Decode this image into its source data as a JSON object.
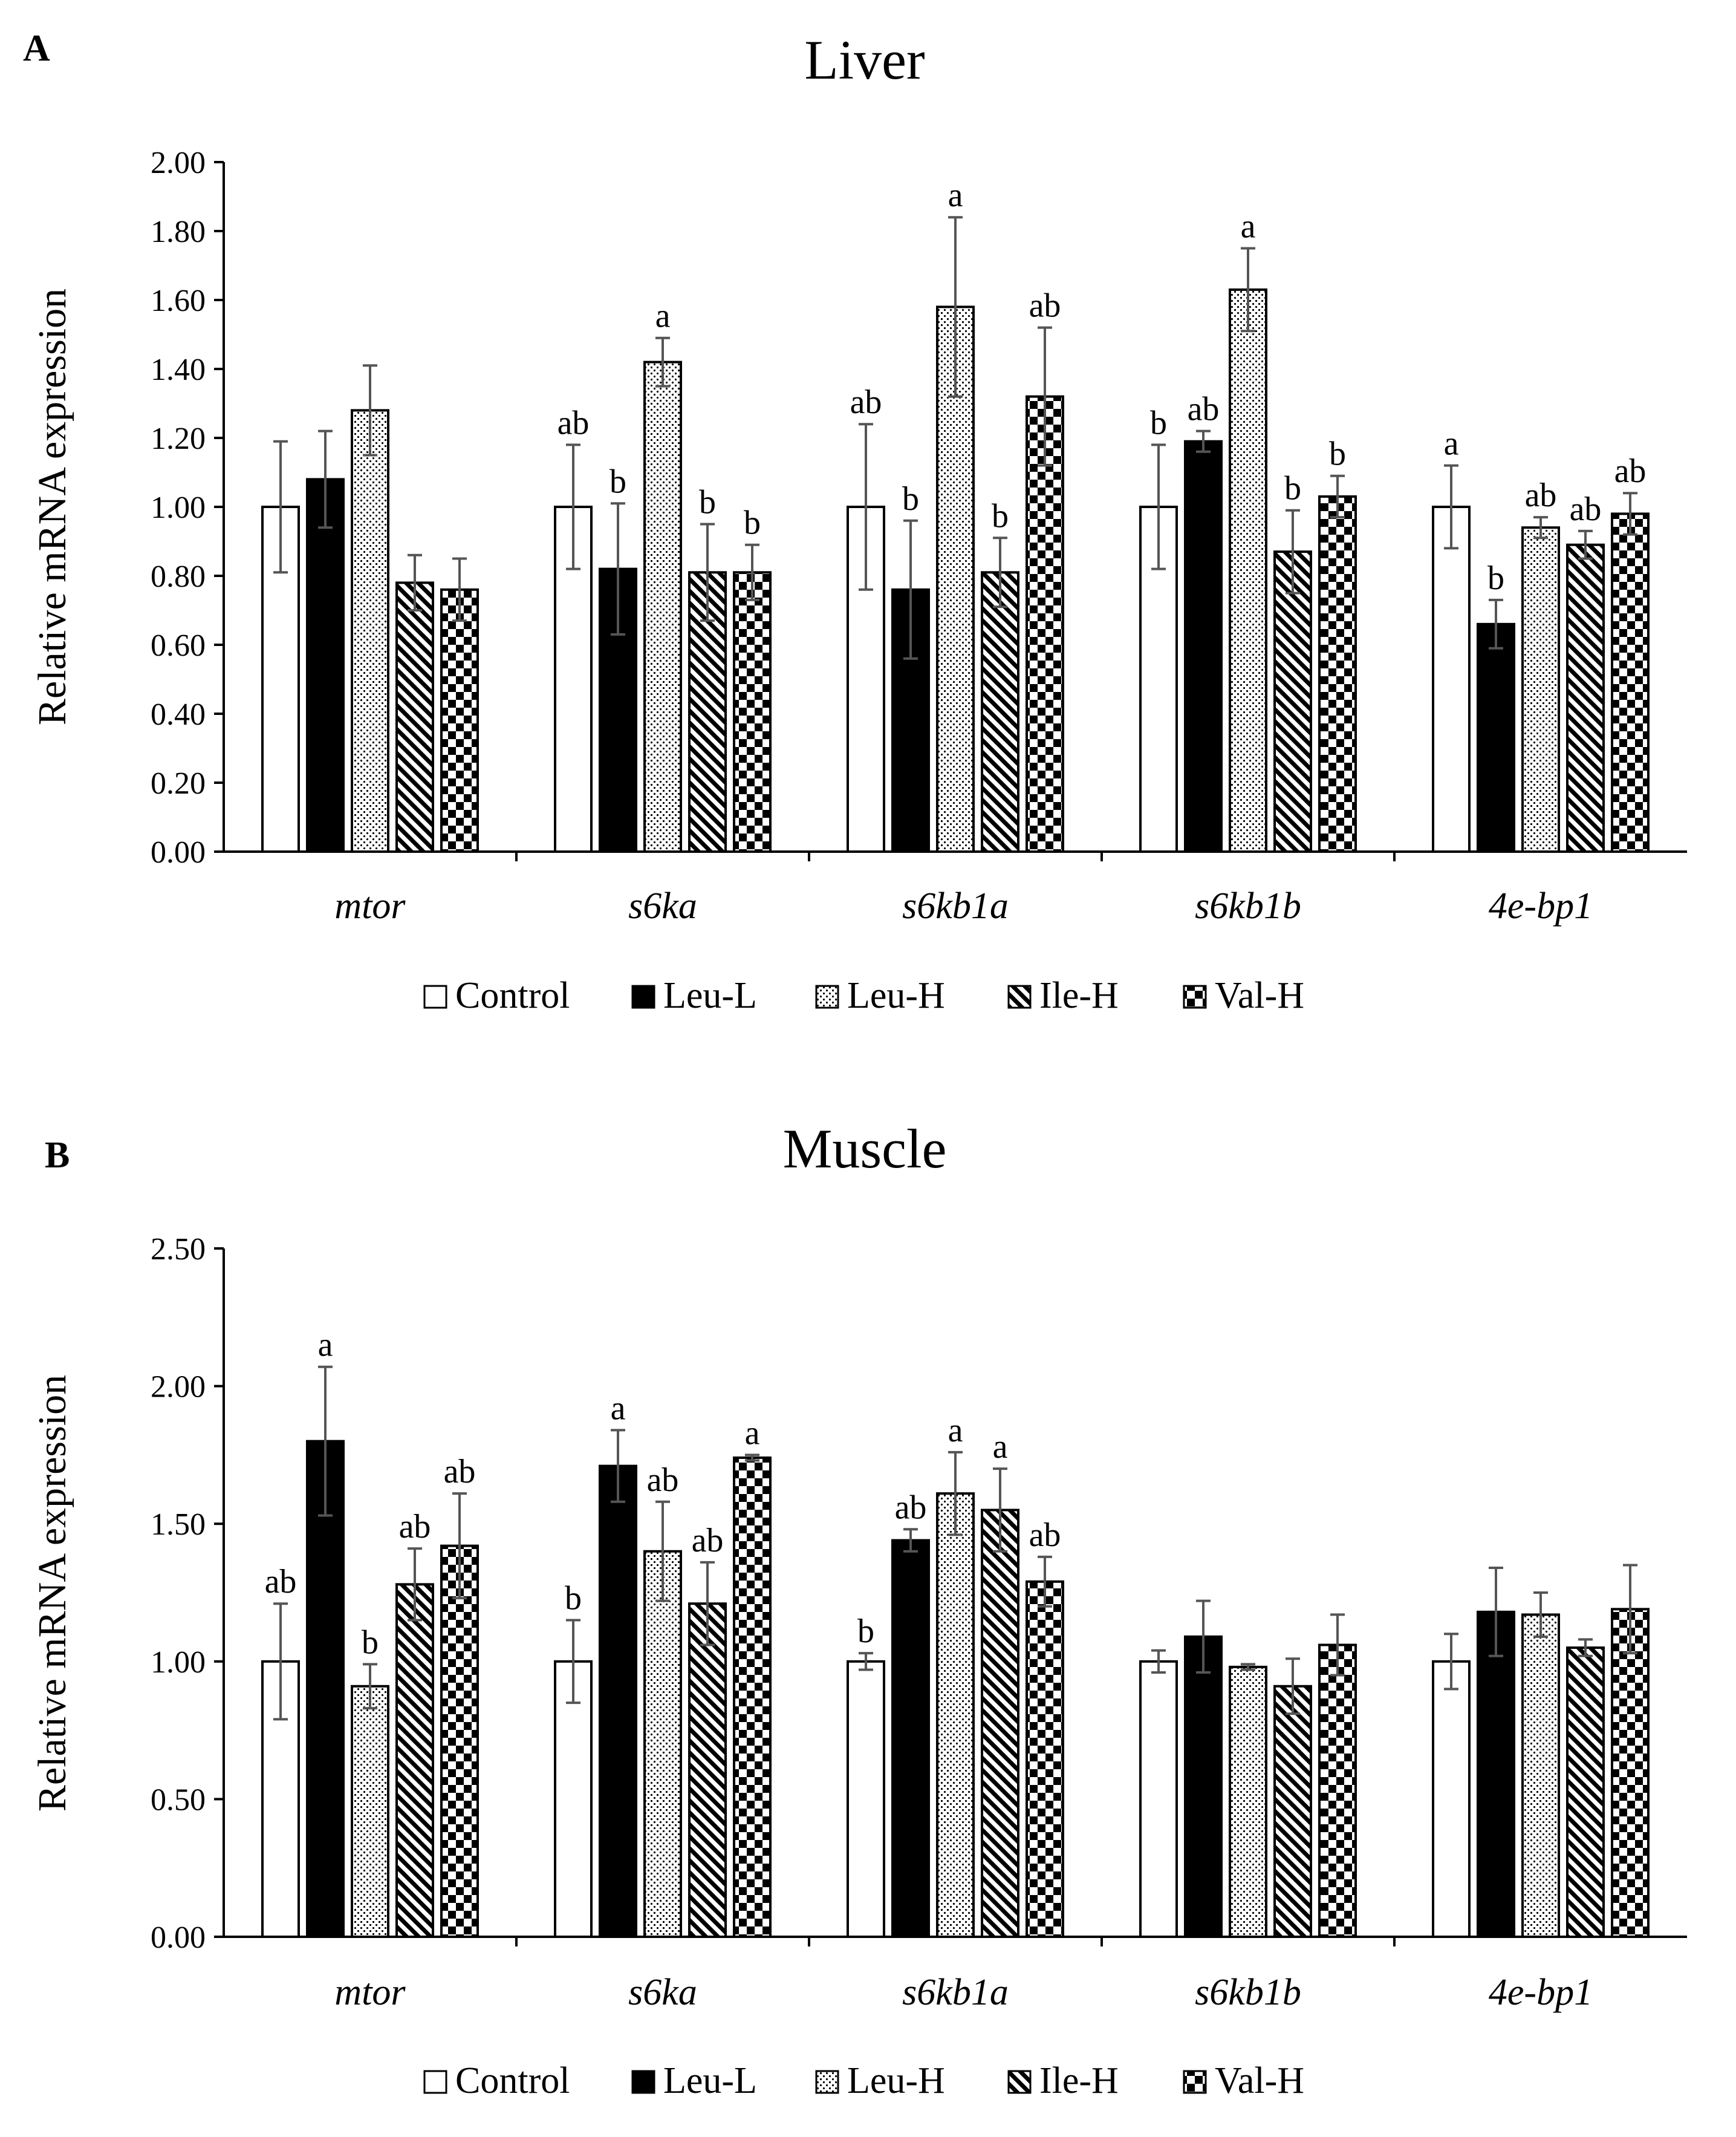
{
  "figure": {
    "description_hidden": false
  },
  "chart_data": [
    {
      "type": "bar",
      "panel_label": "A",
      "title": "Liver",
      "xlabel": "",
      "ylabel": "Relative mRNA expression",
      "ylim": [
        0,
        2.0
      ],
      "yticks": [
        "0.00",
        "0.20",
        "0.40",
        "0.60",
        "0.80",
        "1.00",
        "1.20",
        "1.40",
        "1.60",
        "1.80",
        "2.00"
      ],
      "ytick_values": [
        0,
        0.2,
        0.4,
        0.6,
        0.8,
        1.0,
        1.2,
        1.4,
        1.6,
        1.8,
        2.0
      ],
      "grid": false,
      "legend": {
        "position": "bottom",
        "entries": [
          "Control",
          "Leu-L",
          "Leu-H",
          "Ile-H",
          "Val-H"
        ]
      },
      "categories": [
        "mtor",
        "s6ka",
        "s6kb1a",
        "s6kb1b",
        "4e-bp1"
      ],
      "series": [
        {
          "name": "Control",
          "values": [
            1.0,
            1.0,
            1.0,
            1.0,
            1.0
          ],
          "errors": [
            0.19,
            0.18,
            0.24,
            0.18,
            0.12
          ],
          "labels": [
            "",
            "ab",
            "ab",
            "b",
            "a"
          ]
        },
        {
          "name": "Leu-L",
          "values": [
            1.08,
            0.82,
            0.76,
            1.19,
            0.66
          ],
          "errors": [
            0.14,
            0.19,
            0.2,
            0.03,
            0.07
          ],
          "labels": [
            "",
            "b",
            "b",
            "ab",
            "b"
          ]
        },
        {
          "name": "Leu-H",
          "values": [
            1.28,
            1.42,
            1.58,
            1.63,
            0.94
          ],
          "errors": [
            0.13,
            0.07,
            0.26,
            0.12,
            0.03
          ],
          "labels": [
            "",
            "a",
            "a",
            "a",
            "ab"
          ]
        },
        {
          "name": "Ile-H",
          "values": [
            0.78,
            0.81,
            0.81,
            0.87,
            0.89
          ],
          "errors": [
            0.08,
            0.14,
            0.1,
            0.12,
            0.04
          ],
          "labels": [
            "",
            "b",
            "b",
            "b",
            "ab"
          ]
        },
        {
          "name": "Val-H",
          "values": [
            0.76,
            0.81,
            1.32,
            1.03,
            0.98
          ],
          "errors": [
            0.09,
            0.08,
            0.2,
            0.06,
            0.06
          ],
          "labels": [
            "",
            "b",
            "ab",
            "b",
            "ab"
          ]
        }
      ]
    },
    {
      "type": "bar",
      "panel_label": "B",
      "title": "Muscle",
      "xlabel": "",
      "ylabel": "Relative mRNA expression",
      "ylim": [
        0,
        2.5
      ],
      "yticks": [
        "0.00",
        "0.50",
        "1.00",
        "1.50",
        "2.00",
        "2.50"
      ],
      "ytick_values": [
        0,
        0.5,
        1.0,
        1.5,
        2.0,
        2.5
      ],
      "grid": false,
      "legend": {
        "position": "bottom",
        "entries": [
          "Control",
          "Leu-L",
          "Leu-H",
          "Ile-H",
          "Val-H"
        ]
      },
      "categories": [
        "mtor",
        "s6ka",
        "s6kb1a",
        "s6kb1b",
        "4e-bp1"
      ],
      "series": [
        {
          "name": "Control",
          "values": [
            1.0,
            1.0,
            1.0,
            1.0,
            1.0
          ],
          "errors": [
            0.21,
            0.15,
            0.03,
            0.04,
            0.1
          ],
          "labels": [
            "ab",
            "b",
            "b",
            "",
            ""
          ]
        },
        {
          "name": "Leu-L",
          "values": [
            1.8,
            1.71,
            1.44,
            1.09,
            1.18
          ],
          "errors": [
            0.27,
            0.13,
            0.04,
            0.13,
            0.16
          ],
          "labels": [
            "a",
            "a",
            "ab",
            "",
            ""
          ]
        },
        {
          "name": "Leu-H",
          "values": [
            0.91,
            1.4,
            1.61,
            0.98,
            1.17
          ],
          "errors": [
            0.08,
            0.18,
            0.15,
            0.01,
            0.08
          ],
          "labels": [
            "b",
            "ab",
            "a",
            "",
            ""
          ]
        },
        {
          "name": "Ile-H",
          "values": [
            1.28,
            1.21,
            1.55,
            0.91,
            1.05
          ],
          "errors": [
            0.13,
            0.15,
            0.15,
            0.1,
            0.03
          ],
          "labels": [
            "ab",
            "ab",
            "a",
            "",
            ""
          ]
        },
        {
          "name": "Val-H",
          "values": [
            1.42,
            1.74,
            1.29,
            1.06,
            1.19
          ],
          "errors": [
            0.19,
            0.01,
            0.09,
            0.11,
            0.16
          ],
          "labels": [
            "ab",
            "a",
            "ab",
            "",
            ""
          ]
        }
      ]
    }
  ]
}
